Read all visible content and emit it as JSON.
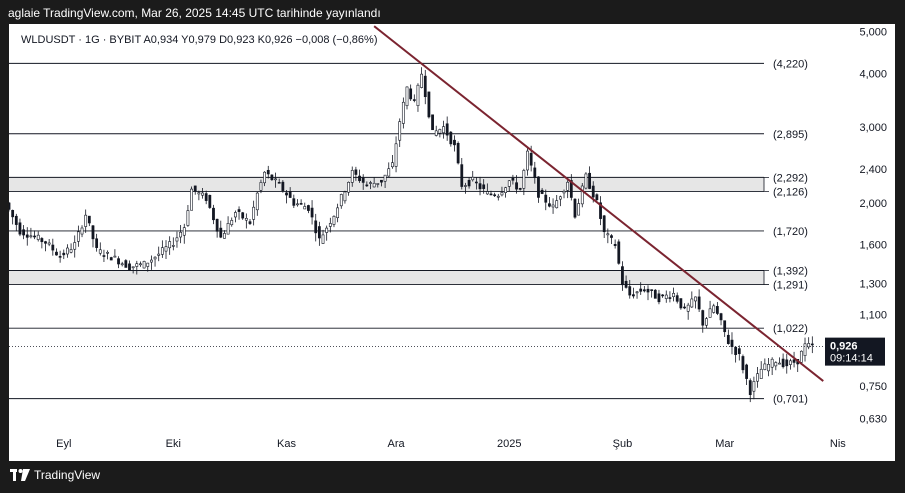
{
  "header": {
    "publish_line": "aglaie TradingView.com, Mar 26, 2025 14:45 UTC tarihinde yayınlandı"
  },
  "legend": {
    "text": "WLDUSDT · 1G · BYBIT  A0,934  Y0,979  D0,923  K0,926  −0,008 (−0,86%)"
  },
  "footer": {
    "brand": "TradingView"
  },
  "colors": {
    "up": "#131722",
    "down": "#131722",
    "trendline": "#7b2430",
    "zone": "#e6e6e6"
  },
  "chart_data": {
    "type": "candlestick",
    "symbol": "WLDUSDT",
    "interval": "1G",
    "exchange": "BYBIT",
    "y_scale": "log",
    "ylim": [
      0.58,
      5.1
    ],
    "y_ticks": [
      {
        "v": 5.0,
        "label": "5,000"
      },
      {
        "v": 4.0,
        "label": "4,000"
      },
      {
        "v": 3.0,
        "label": "3,000"
      },
      {
        "v": 2.4,
        "label": "2,400"
      },
      {
        "v": 2.0,
        "label": "2,000"
      },
      {
        "v": 1.6,
        "label": "1,600"
      },
      {
        "v": 1.3,
        "label": "1,300"
      },
      {
        "v": 1.1,
        "label": "1,100"
      },
      {
        "v": 0.75,
        "label": "0,750"
      },
      {
        "v": 0.63,
        "label": "0,630"
      }
    ],
    "x_ticks": [
      {
        "date": "2024-09-01",
        "label": "Eyl"
      },
      {
        "date": "2024-10-01",
        "label": "Eki"
      },
      {
        "date": "2024-11-01",
        "label": "Kas"
      },
      {
        "date": "2024-12-01",
        "label": "Ara"
      },
      {
        "date": "2025-01-01",
        "label": "2025"
      },
      {
        "date": "2025-02-01",
        "label": "Şub"
      },
      {
        "date": "2025-03-01",
        "label": "Mar"
      },
      {
        "date": "2025-04-01",
        "label": "Nis"
      }
    ],
    "levels": [
      {
        "v": 4.22,
        "label": "(4,220)"
      },
      {
        "v": 2.895,
        "label": "(2,895)"
      },
      {
        "v": 2.292,
        "label": "(2,292)"
      },
      {
        "v": 2.126,
        "label": "(2,126)"
      },
      {
        "v": 1.72,
        "label": "(1,720)"
      },
      {
        "v": 1.392,
        "label": "(1,392)"
      },
      {
        "v": 1.291,
        "label": "(1,291)"
      },
      {
        "v": 1.022,
        "label": "(1,022)"
      },
      {
        "v": 0.701,
        "label": "(0,701)"
      }
    ],
    "zones": [
      {
        "from": 2.126,
        "to": 2.292
      },
      {
        "from": 1.291,
        "to": 1.392
      }
    ],
    "trendline": [
      {
        "date": "2024-11-25",
        "price": 5.15
      },
      {
        "date": "2025-03-28",
        "price": 0.77
      }
    ],
    "last_price": {
      "v": 0.926,
      "label": "0,926",
      "countdown": "09:14:14"
    },
    "anchors": [
      {
        "date": "2024-08-17",
        "price": 2.0
      },
      {
        "date": "2024-08-21",
        "price": 1.72
      },
      {
        "date": "2024-08-24",
        "price": 1.68
      },
      {
        "date": "2024-08-28",
        "price": 1.62
      },
      {
        "date": "2024-09-01",
        "price": 1.5
      },
      {
        "date": "2024-09-05",
        "price": 1.6
      },
      {
        "date": "2024-09-08",
        "price": 1.88
      },
      {
        "date": "2024-09-11",
        "price": 1.55
      },
      {
        "date": "2024-09-15",
        "price": 1.5
      },
      {
        "date": "2024-09-20",
        "price": 1.42
      },
      {
        "date": "2024-09-24",
        "price": 1.44
      },
      {
        "date": "2024-09-28",
        "price": 1.52
      },
      {
        "date": "2024-10-02",
        "price": 1.62
      },
      {
        "date": "2024-10-05",
        "price": 1.76
      },
      {
        "date": "2024-10-07",
        "price": 2.15
      },
      {
        "date": "2024-10-11",
        "price": 2.05
      },
      {
        "date": "2024-10-15",
        "price": 1.66
      },
      {
        "date": "2024-10-19",
        "price": 1.9
      },
      {
        "date": "2024-10-23",
        "price": 1.8
      },
      {
        "date": "2024-10-25",
        "price": 2.1
      },
      {
        "date": "2024-10-27",
        "price": 2.35
      },
      {
        "date": "2024-10-31",
        "price": 2.2
      },
      {
        "date": "2024-11-04",
        "price": 2.0
      },
      {
        "date": "2024-11-08",
        "price": 1.95
      },
      {
        "date": "2024-11-11",
        "price": 1.64
      },
      {
        "date": "2024-11-15",
        "price": 1.88
      },
      {
        "date": "2024-11-18",
        "price": 2.15
      },
      {
        "date": "2024-11-20",
        "price": 2.35
      },
      {
        "date": "2024-11-24",
        "price": 2.2
      },
      {
        "date": "2024-11-28",
        "price": 2.25
      },
      {
        "date": "2024-12-01",
        "price": 2.45
      },
      {
        "date": "2024-12-03",
        "price": 3.1
      },
      {
        "date": "2024-12-05",
        "price": 3.7
      },
      {
        "date": "2024-12-07",
        "price": 3.4
      },
      {
        "date": "2024-12-09",
        "price": 4.0
      },
      {
        "date": "2024-12-10",
        "price": 3.6
      },
      {
        "date": "2024-12-12",
        "price": 2.9
      },
      {
        "date": "2024-12-15",
        "price": 3.0
      },
      {
        "date": "2024-12-18",
        "price": 2.7
      },
      {
        "date": "2024-12-20",
        "price": 2.2
      },
      {
        "date": "2024-12-23",
        "price": 2.25
      },
      {
        "date": "2024-12-27",
        "price": 2.1
      },
      {
        "date": "2024-12-30",
        "price": 2.1
      },
      {
        "date": "2025-01-02",
        "price": 2.25
      },
      {
        "date": "2025-01-05",
        "price": 2.15
      },
      {
        "date": "2025-01-07",
        "price": 2.6
      },
      {
        "date": "2025-01-10",
        "price": 2.1
      },
      {
        "date": "2025-01-14",
        "price": 1.95
      },
      {
        "date": "2025-01-18",
        "price": 2.25
      },
      {
        "date": "2025-01-20",
        "price": 1.88
      },
      {
        "date": "2025-01-23",
        "price": 2.3
      },
      {
        "date": "2025-01-26",
        "price": 2.0
      },
      {
        "date": "2025-01-28",
        "price": 1.7
      },
      {
        "date": "2025-01-31",
        "price": 1.6
      },
      {
        "date": "2025-02-02",
        "price": 1.3
      },
      {
        "date": "2025-02-04",
        "price": 1.22
      },
      {
        "date": "2025-02-08",
        "price": 1.26
      },
      {
        "date": "2025-02-12",
        "price": 1.2
      },
      {
        "date": "2025-02-16",
        "price": 1.23
      },
      {
        "date": "2025-02-19",
        "price": 1.12
      },
      {
        "date": "2025-02-22",
        "price": 1.2
      },
      {
        "date": "2025-02-24",
        "price": 1.05
      },
      {
        "date": "2025-02-27",
        "price": 1.15
      },
      {
        "date": "2025-03-01",
        "price": 1.05
      },
      {
        "date": "2025-03-03",
        "price": 0.95
      },
      {
        "date": "2025-03-06",
        "price": 0.88
      },
      {
        "date": "2025-03-09",
        "price": 0.73
      },
      {
        "date": "2025-03-12",
        "price": 0.82
      },
      {
        "date": "2025-03-16",
        "price": 0.86
      },
      {
        "date": "2025-03-19",
        "price": 0.84
      },
      {
        "date": "2025-03-22",
        "price": 0.86
      },
      {
        "date": "2025-03-24",
        "price": 0.93
      },
      {
        "date": "2025-03-26",
        "price": 0.926
      }
    ]
  }
}
